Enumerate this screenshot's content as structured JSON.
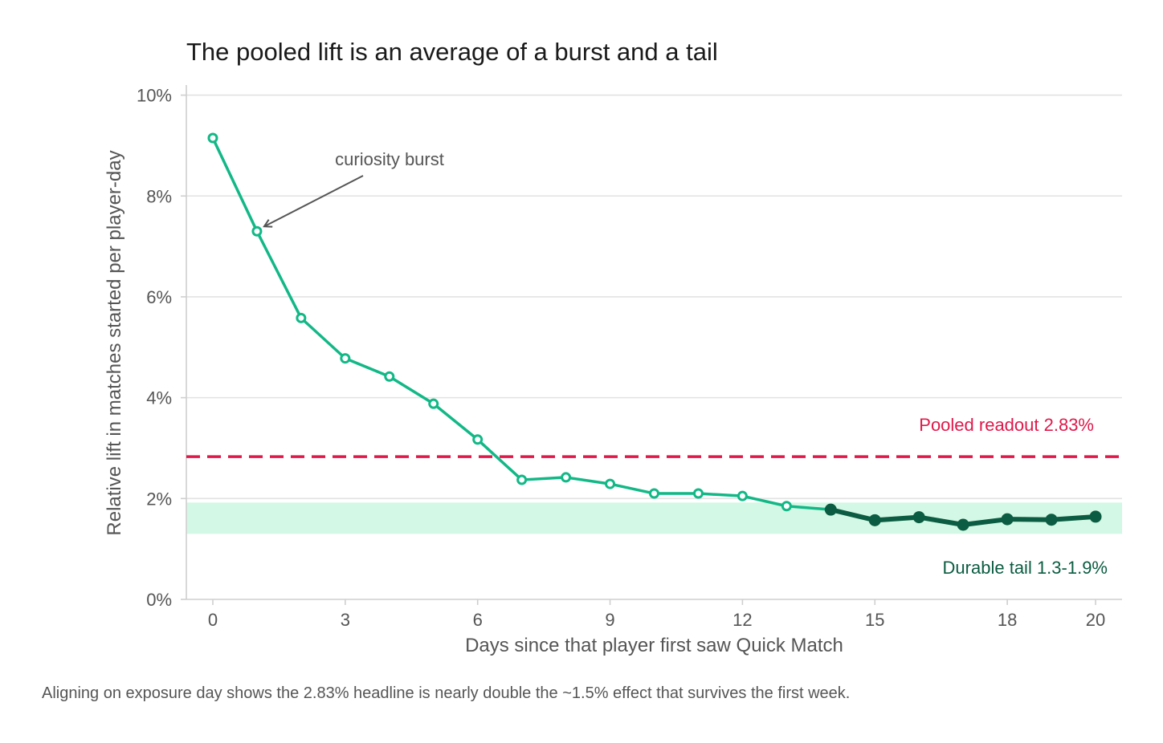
{
  "title": "The pooled lift is an average of a burst and a tail",
  "caption": "Aligning on exposure day shows the 2.83% headline is nearly double the ~1.5% effect that survives the first week.",
  "chart_data": {
    "type": "line",
    "title": "The pooled lift is an average of a burst and a tail",
    "xlabel": "Days since that player first saw Quick Match",
    "ylabel": "Relative lift in matches started per player-day",
    "xlim": [
      -0.6,
      20.6
    ],
    "ylim": [
      0,
      10.2
    ],
    "x_ticks": [
      0,
      3,
      6,
      9,
      12,
      15,
      18,
      20
    ],
    "x_tick_labels": [
      "0",
      "3",
      "6",
      "9",
      "12",
      "15",
      "18",
      "20"
    ],
    "y_ticks": [
      0,
      2,
      4,
      6,
      8,
      10
    ],
    "y_tick_labels": [
      "0%",
      "2%",
      "4%",
      "6%",
      "8%",
      "10%"
    ],
    "grid": "horizontal",
    "x": [
      0,
      1,
      2,
      3,
      4,
      5,
      6,
      7,
      8,
      9,
      10,
      11,
      12,
      13,
      14,
      15,
      16,
      17,
      18,
      19,
      20
    ],
    "values": [
      9.15,
      7.3,
      5.58,
      4.78,
      4.42,
      3.88,
      3.17,
      2.37,
      2.42,
      2.29,
      2.1,
      2.1,
      2.05,
      1.85,
      1.78,
      1.57,
      1.63,
      1.48,
      1.59,
      1.58,
      1.64
    ],
    "tail_start_x": 14,
    "pooled_value": 2.83,
    "pooled_label": "Pooled readout  2.83%",
    "band": [
      1.3,
      1.92
    ],
    "band_label": "Durable tail  1.3-1.9%",
    "annotation": {
      "text": "curiosity burst",
      "x": 1,
      "y": 7.3
    },
    "colors": {
      "burst_line": "#12b886",
      "tail_line": "#0b5c42",
      "pooled": "#e0184a",
      "band": "#d3f8e5",
      "grid": "#e2e2e2",
      "axis": "#cfcfcf",
      "text": "#555555",
      "annotation_arrow": "#555555"
    }
  }
}
